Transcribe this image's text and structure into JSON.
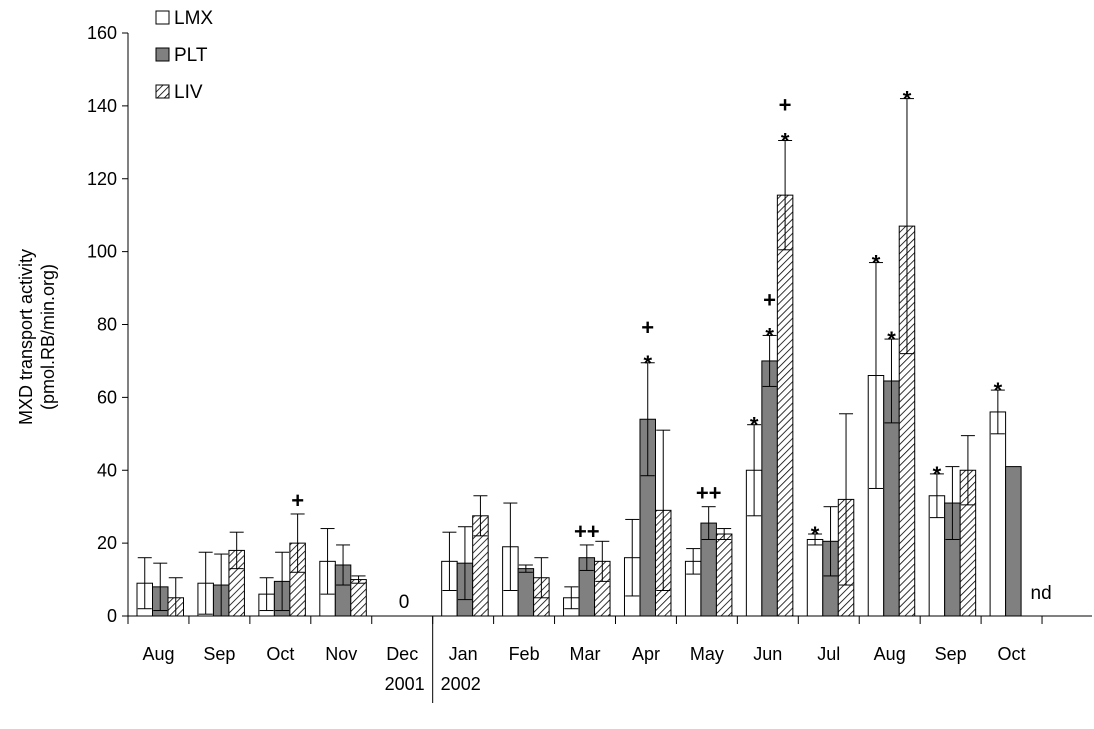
{
  "chart_data": {
    "type": "bar",
    "ylabel_line1": "MXD transport activity",
    "ylabel_line2": "(pmol.RB/min.org)",
    "ylim": [
      0,
      160
    ],
    "yticks": [
      0,
      20,
      40,
      60,
      80,
      100,
      120,
      140,
      160
    ],
    "categories": [
      "Aug",
      "Sep",
      "Oct",
      "Nov",
      "Dec",
      "Jan",
      "Feb",
      "Mar",
      "Apr",
      "May",
      "Jun",
      "Jul",
      "Aug",
      "Sep",
      "Oct"
    ],
    "year_labels": [
      "2001",
      "2002"
    ],
    "legend_position": "top-left",
    "series": [
      {
        "name": "LMX",
        "pattern": "white",
        "values": [
          9,
          9,
          6,
          15,
          0,
          15,
          19,
          5,
          16,
          15,
          40,
          21,
          66,
          33,
          56
        ],
        "errors": [
          7,
          8.5,
          4.5,
          9,
          0,
          8,
          12,
          3,
          10.5,
          3.5,
          12.5,
          1.5,
          31,
          6,
          6
        ]
      },
      {
        "name": "PLT",
        "pattern": "gray",
        "values": [
          8,
          8.5,
          9.5,
          14,
          0,
          14.5,
          13,
          16,
          54,
          25.5,
          70,
          20.5,
          64.5,
          31,
          41
        ],
        "errors": [
          6.5,
          8.5,
          8,
          5.5,
          0,
          10,
          1,
          3.5,
          15.5,
          4.5,
          7,
          9.5,
          11.5,
          10,
          0
        ]
      },
      {
        "name": "LIV",
        "pattern": "hatched",
        "values": [
          5,
          18,
          20,
          10,
          0,
          27.5,
          10.5,
          15,
          29,
          22.5,
          115.5,
          32,
          107,
          40,
          null
        ],
        "errors": [
          5.5,
          5,
          8,
          1,
          0,
          5.5,
          5.5,
          5.5,
          22,
          1.5,
          15,
          23.5,
          35,
          9.5,
          null
        ]
      }
    ],
    "annotations": [
      {
        "category_index": 2,
        "series": 2,
        "text": "+"
      },
      {
        "category_index": 4,
        "series": 1,
        "text": "0"
      },
      {
        "category_index": 7,
        "series": 1,
        "text": "++"
      },
      {
        "category_index": 8,
        "series": 1,
        "text": "*"
      },
      {
        "category_index": 8,
        "series": 1,
        "text": "+"
      },
      {
        "category_index": 9,
        "series": 1,
        "text": "++"
      },
      {
        "category_index": 10,
        "series": 0,
        "text": "*"
      },
      {
        "category_index": 10,
        "series": 1,
        "text": "*"
      },
      {
        "category_index": 10,
        "series": 1,
        "text": "+"
      },
      {
        "category_index": 10,
        "series": 2,
        "text": "*"
      },
      {
        "category_index": 10,
        "series": 2,
        "text": "+"
      },
      {
        "category_index": 11,
        "series": 0,
        "text": "*"
      },
      {
        "category_index": 12,
        "series": 0,
        "text": "*"
      },
      {
        "category_index": 12,
        "series": 1,
        "text": "*"
      },
      {
        "category_index": 12,
        "series": 2,
        "text": "*"
      },
      {
        "category_index": 13,
        "series": 0,
        "text": "*"
      },
      {
        "category_index": 14,
        "series": 0,
        "text": "*"
      },
      {
        "category_index": 14,
        "series": 2,
        "text": "nd"
      }
    ]
  }
}
